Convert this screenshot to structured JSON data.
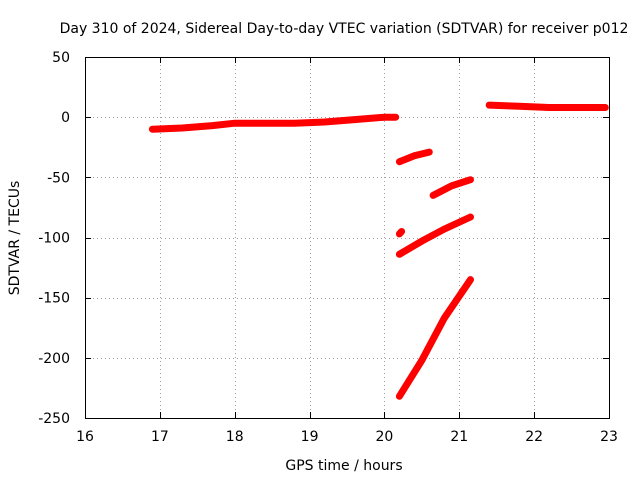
{
  "chart_data": {
    "type": "line",
    "title": "Day 310 of 2024, Sidereal Day-to-day VTEC variation (SDTVAR) for receiver p012",
    "xlabel": "GPS time / hours",
    "ylabel": "SDTVAR / TECUs",
    "xlim": [
      16,
      23
    ],
    "ylim": [
      -250,
      50
    ],
    "xticks": [
      16,
      17,
      18,
      19,
      20,
      21,
      22,
      23
    ],
    "yticks": [
      50,
      0,
      -50,
      -100,
      -150,
      -200,
      -250
    ],
    "grid": true,
    "color": "#ff0000",
    "series": [
      {
        "name": "segment-1",
        "x": [
          16.9,
          17.3,
          17.7,
          18.0,
          18.4,
          18.8,
          19.2,
          19.6,
          20.0,
          20.15
        ],
        "y": [
          -10,
          -9,
          -7,
          -5,
          -5,
          -5,
          -4,
          -2,
          0,
          0
        ]
      },
      {
        "name": "segment-2",
        "x": [
          20.2,
          20.4,
          20.6
        ],
        "y": [
          -37,
          -32,
          -29
        ]
      },
      {
        "name": "segment-3",
        "x": [
          20.2,
          20.23
        ],
        "y": [
          -97,
          -95
        ]
      },
      {
        "name": "segment-4",
        "x": [
          20.2,
          20.5,
          20.8,
          21.15
        ],
        "y": [
          -114,
          -103,
          -93,
          -83
        ]
      },
      {
        "name": "segment-5",
        "x": [
          20.65,
          20.9,
          21.15
        ],
        "y": [
          -65,
          -57,
          -52
        ]
      },
      {
        "name": "segment-6",
        "x": [
          20.2,
          20.5,
          20.8,
          21.15
        ],
        "y": [
          -232,
          -202,
          -167,
          -135
        ]
      },
      {
        "name": "segment-7",
        "x": [
          21.4,
          21.8,
          22.2,
          22.6,
          22.95
        ],
        "y": [
          10,
          9,
          8,
          8,
          8
        ]
      }
    ]
  }
}
